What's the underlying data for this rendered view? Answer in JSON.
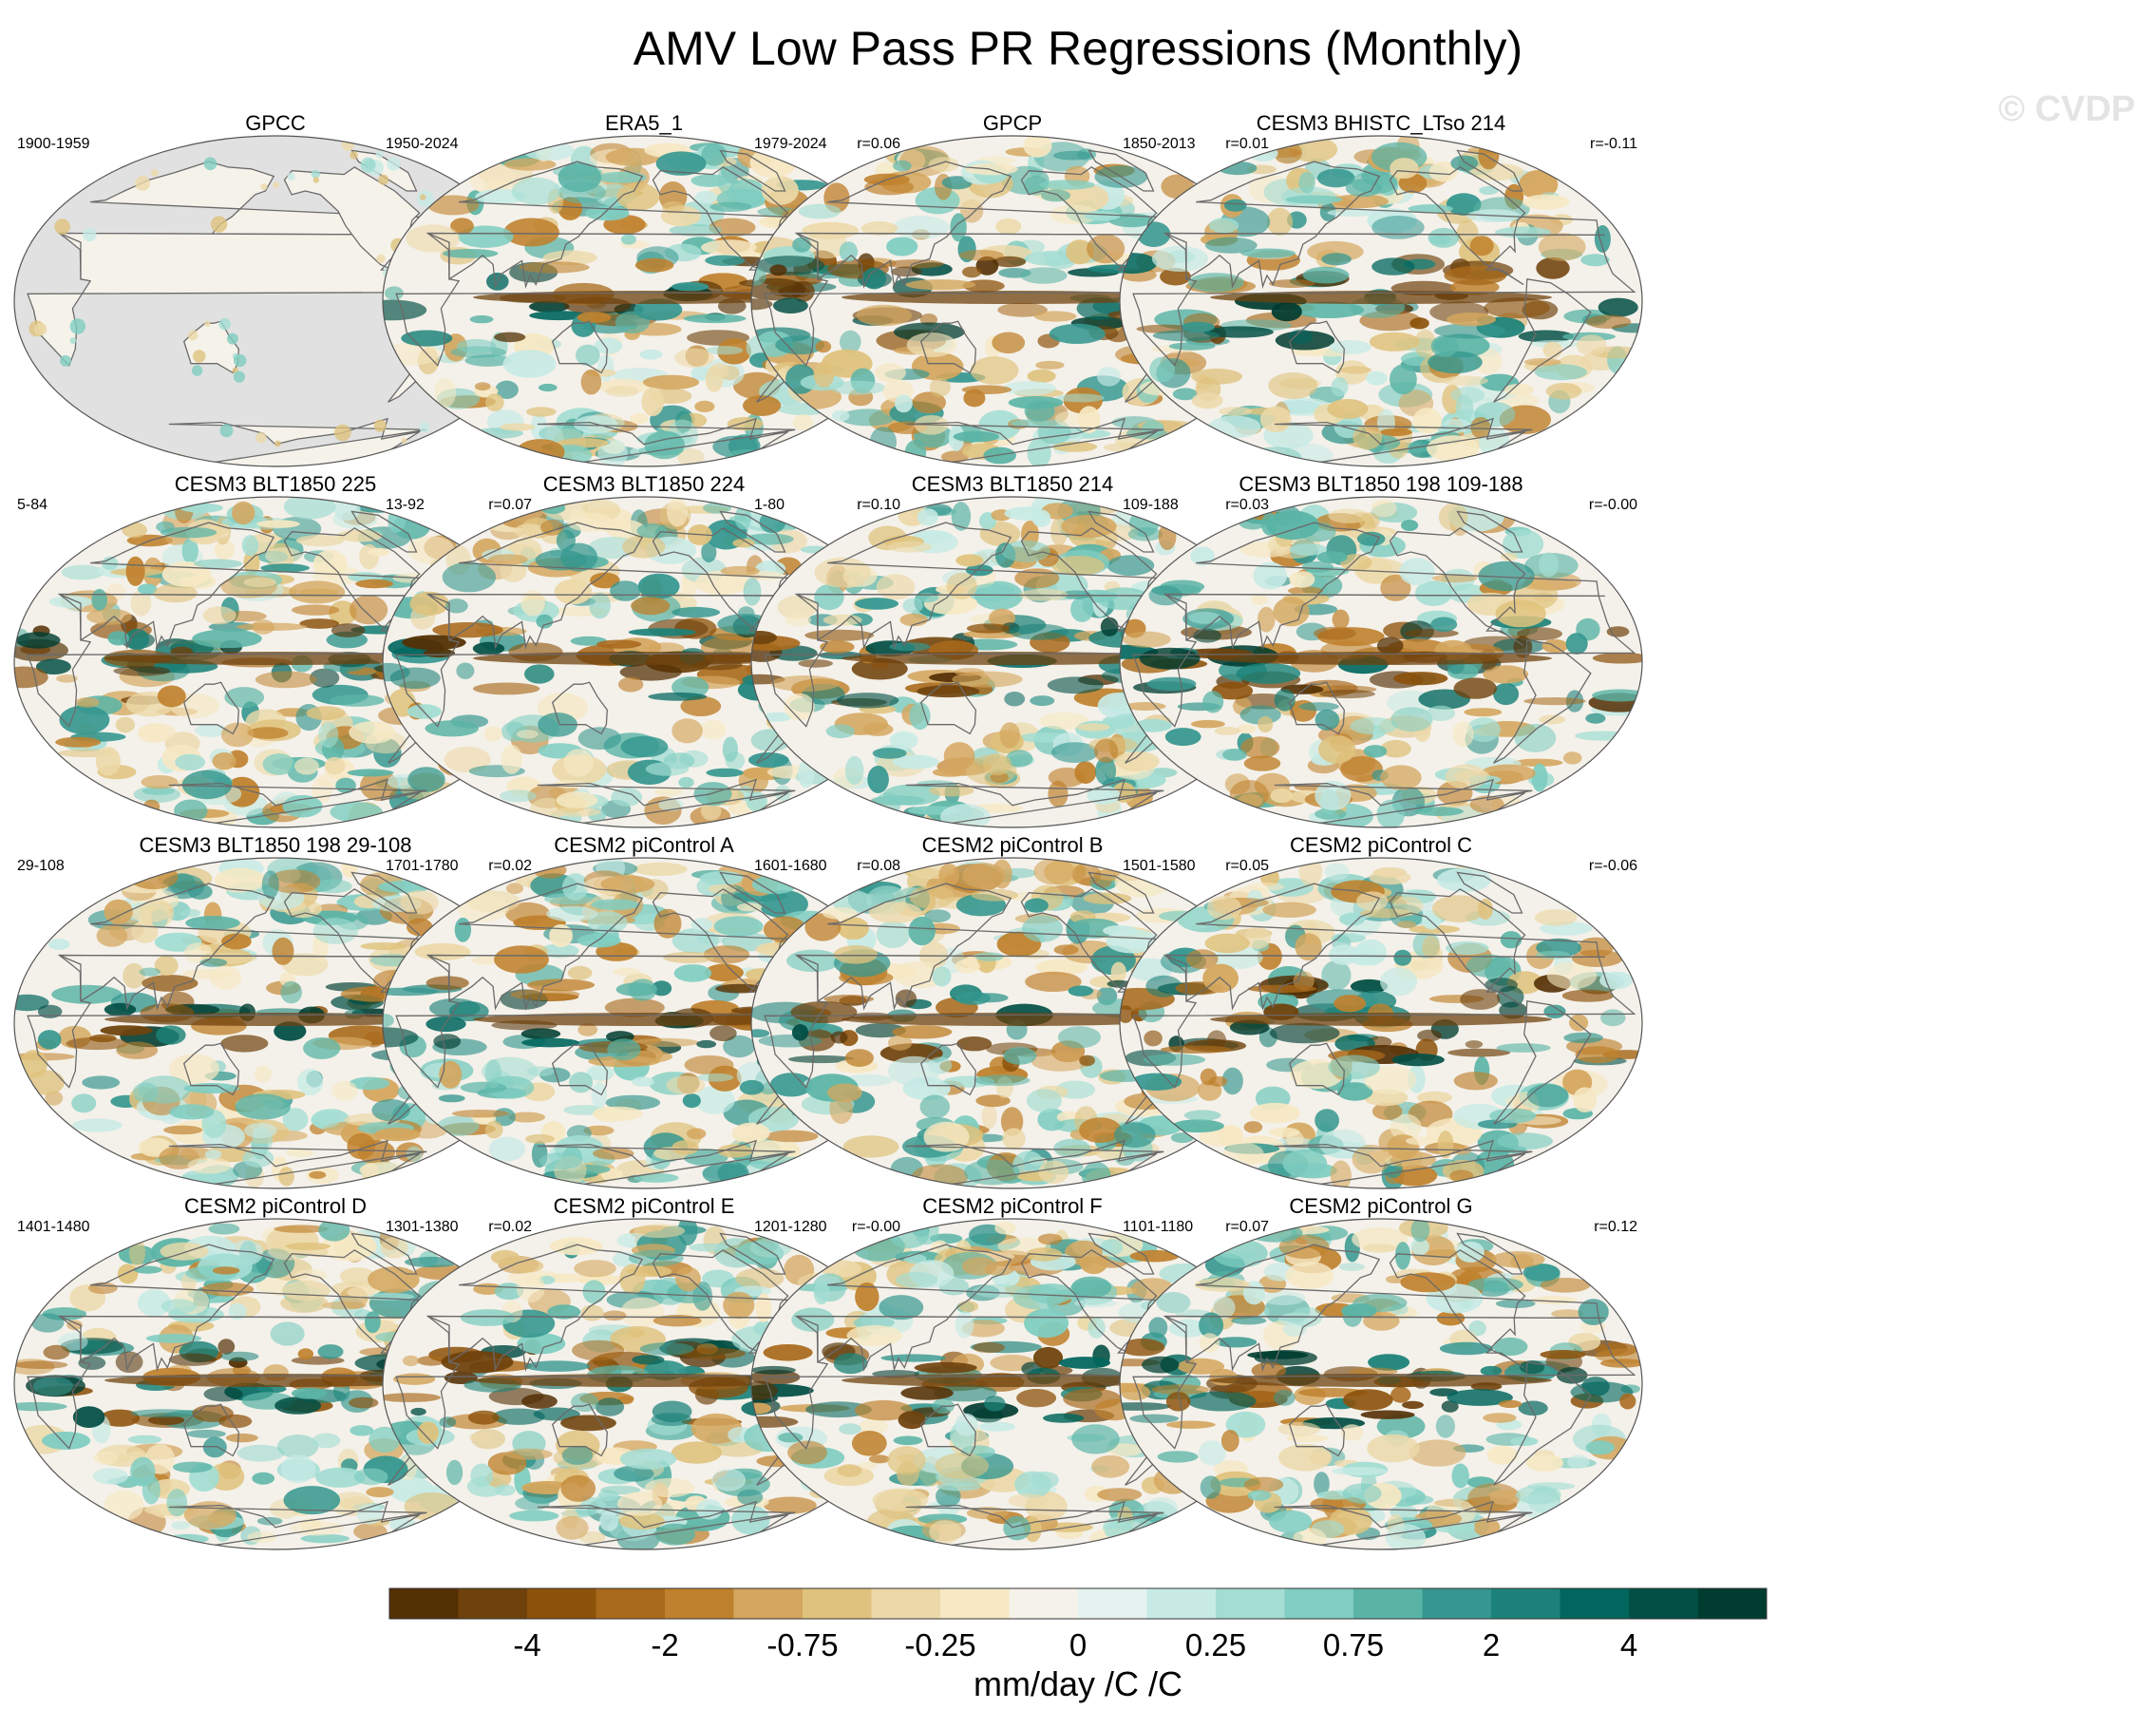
{
  "title": "AMV Low Pass PR Regressions (Monthly)",
  "watermark": "© CVDP",
  "panels": [
    {
      "title": "GPCC",
      "years": "1900-1959",
      "corr": "",
      "land_only": true,
      "seed": 3
    },
    {
      "title": "ERA5_1",
      "years": "1950-2024",
      "corr": "r=0.06",
      "land_only": false,
      "seed": 11
    },
    {
      "title": "GPCP",
      "years": "1979-2024",
      "corr": "r=0.01",
      "land_only": false,
      "seed": 17
    },
    {
      "title": "CESM3 BHISTC_LTso 214",
      "years": "1850-2013",
      "corr": "r=-0.11",
      "land_only": false,
      "seed": 23
    },
    {
      "title": "CESM3 BLT1850 225",
      "years": "5-84",
      "corr": "r=0.07",
      "land_only": false,
      "seed": 31
    },
    {
      "title": "CESM3 BLT1850 224",
      "years": "13-92",
      "corr": "r=0.10",
      "land_only": false,
      "seed": 37
    },
    {
      "title": "CESM3 BLT1850 214",
      "years": "1-80",
      "corr": "r=0.03",
      "land_only": false,
      "seed": 41
    },
    {
      "title": "CESM3 BLT1850 198 109-188",
      "years": "109-188",
      "corr": "r=-0.00",
      "land_only": false,
      "seed": 47
    },
    {
      "title": "CESM3 BLT1850 198 29-108",
      "years": "29-108",
      "corr": "r=0.02",
      "land_only": false,
      "seed": 53
    },
    {
      "title": "CESM2 piControl A",
      "years": "1701-1780",
      "corr": "r=0.08",
      "land_only": false,
      "seed": 59
    },
    {
      "title": "CESM2 piControl B",
      "years": "1601-1680",
      "corr": "r=0.05",
      "land_only": false,
      "seed": 61
    },
    {
      "title": "CESM2 piControl C",
      "years": "1501-1580",
      "corr": "r=-0.06",
      "land_only": false,
      "seed": 67
    },
    {
      "title": "CESM2 piControl D",
      "years": "1401-1480",
      "corr": "r=0.02",
      "land_only": false,
      "seed": 71
    },
    {
      "title": "CESM2 piControl E",
      "years": "1301-1380",
      "corr": "r=-0.00",
      "land_only": false,
      "seed": 73
    },
    {
      "title": "CESM2 piControl F",
      "years": "1201-1280",
      "corr": "r=0.07",
      "land_only": false,
      "seed": 79
    },
    {
      "title": "CESM2 piControl G",
      "years": "1101-1180",
      "corr": "r=0.12",
      "land_only": false,
      "seed": 83
    }
  ],
  "colorbar": {
    "colors": [
      "#543005",
      "#6f420d",
      "#8c510a",
      "#a8691b",
      "#bf812d",
      "#d4a65e",
      "#dfc27d",
      "#ecd9a9",
      "#f6e8c3",
      "#f5f2ea",
      "#e5f2f0",
      "#c7eae5",
      "#a3ddd3",
      "#80cdc1",
      "#5ab4a6",
      "#35978f",
      "#1c8279",
      "#01665e",
      "#024f45",
      "#003c30"
    ],
    "labels": [
      {
        "text": "-4",
        "boundary": 2
      },
      {
        "text": "-2",
        "boundary": 4
      },
      {
        "text": "-0.75",
        "boundary": 6
      },
      {
        "text": "-0.25",
        "boundary": 8
      },
      {
        "text": "0",
        "boundary": 10
      },
      {
        "text": "0.25",
        "boundary": 12
      },
      {
        "text": "0.75",
        "boundary": 14
      },
      {
        "text": "2",
        "boundary": 16
      },
      {
        "text": "4",
        "boundary": 18
      }
    ],
    "units": "mm/day /C /C"
  }
}
